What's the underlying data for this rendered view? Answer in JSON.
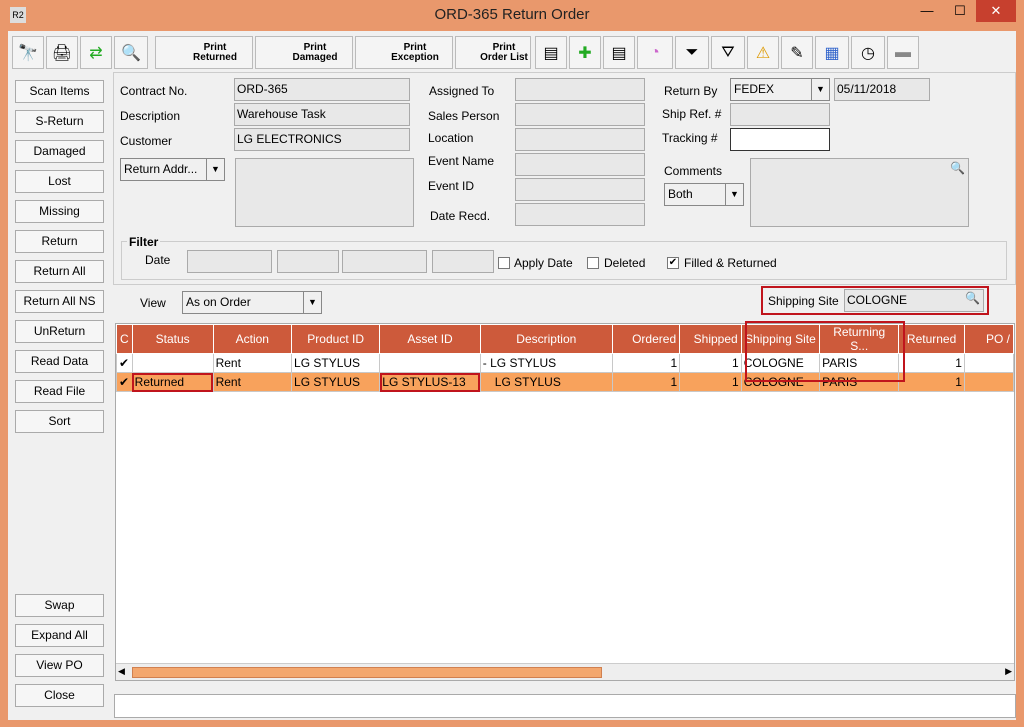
{
  "window": {
    "title": "ORD-365 Return Order",
    "app_icon": "R2"
  },
  "toolbar": {
    "icons": [
      "binoculars-icon",
      "printer-icon",
      "refresh-icon",
      "zoom-icon"
    ],
    "print_buttons": [
      {
        "l1": "Print",
        "l2": "Returned"
      },
      {
        "l1": "Print",
        "l2": "Damaged"
      },
      {
        "l1": "Print",
        "l2": "Exception"
      },
      {
        "l1": "Print",
        "l2": "Order List"
      }
    ]
  },
  "left_buttons": [
    "Scan Items",
    "S-Return",
    "Damaged",
    "Lost",
    "Missing",
    "Return",
    "Return All",
    "Return All NS",
    "UnReturn",
    "Read Data",
    "Read File",
    "Sort"
  ],
  "bottom_buttons": [
    "Swap",
    "Expand All",
    "View PO",
    "Close"
  ],
  "form": {
    "contract_label": "Contract No.",
    "contract": "ORD-365",
    "description_label": "Description",
    "description": "Warehouse Task",
    "customer_label": "Customer",
    "customer": "LG ELECTRONICS",
    "return_addr": "Return Addr...",
    "assigned_label": "Assigned To",
    "sales_label": "Sales Person",
    "location_label": "Location",
    "event_name_label": "Event Name",
    "event_id_label": "Event ID",
    "date_recd_label": "Date Recd.",
    "return_by_label": "Return By",
    "return_by": "FEDEX",
    "return_date": "05/11/2018",
    "ship_ref_label": "Ship Ref. #",
    "tracking_label": "Tracking #",
    "comments_label": "Comments",
    "comments_select": "Both"
  },
  "filter": {
    "title": "Filter",
    "date_label": "Date",
    "apply_date": "Apply Date",
    "deleted": "Deleted",
    "filled": "Filled & Returned",
    "filled_checked": true
  },
  "view": {
    "label": "View",
    "value": "As on Order",
    "shipping_site_label": "Shipping Site",
    "shipping_site": "COLOGNE"
  },
  "table": {
    "headers": [
      "C",
      "Status",
      "Action",
      "Product ID",
      "Asset ID",
      "Description",
      "Ordered",
      "Shipped",
      "Shipping Site",
      "Returning S...",
      "Returned",
      "PO /"
    ],
    "rows": [
      {
        "c": "✔",
        "status": "",
        "action": "Rent",
        "product": "LG STYLUS",
        "asset": "",
        "desc": "- LG STYLUS",
        "ordered": "1",
        "shipped": "1",
        "ship_site": "COLOGNE",
        "ret_site": "PARIS",
        "returned": "1",
        "po": ""
      },
      {
        "c": "✔",
        "status": "Returned",
        "action": "Rent",
        "product": "LG STYLUS",
        "asset": "LG STYLUS-13",
        "desc": "LG STYLUS",
        "ordered": "1",
        "shipped": "1",
        "ship_site": "COLOGNE",
        "ret_site": "PARIS",
        "returned": "1",
        "po": ""
      }
    ]
  },
  "colors": {
    "accent": "#e9986c",
    "header": "#cd5a3b",
    "selected_row": "#f8a25c",
    "highlight": "#c0141c"
  }
}
